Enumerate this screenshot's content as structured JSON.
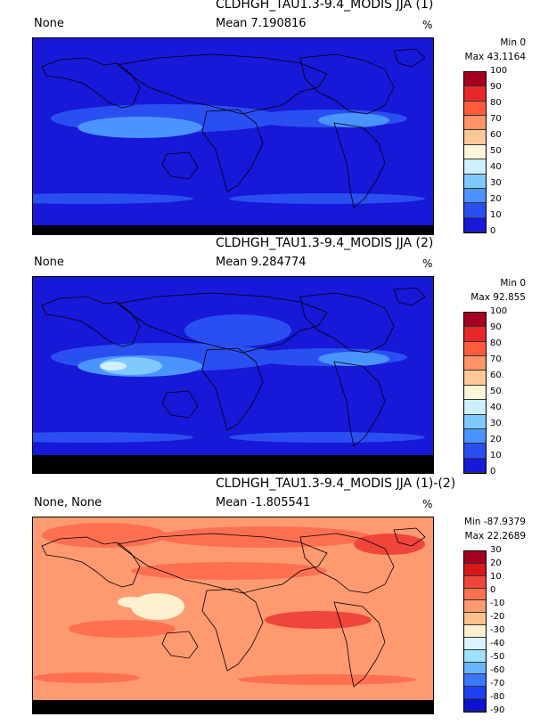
{
  "panels": [
    {
      "title": "CLDHGH_TAU1.3-9.4_MODIS JJA (1)",
      "left_label": "None",
      "mean_text": "Mean 7.190816",
      "units": "%",
      "min_text": "Min 0",
      "max_text": "Max 43.1164",
      "colorbar_ticks": [
        "100",
        "90",
        "80",
        "70",
        "60",
        "50",
        "40",
        "30",
        "20",
        "10",
        "0"
      ],
      "colorbar_colors": [
        "#a50021",
        "#e8262b",
        "#ff5a3c",
        "#ff9466",
        "#ffc896",
        "#fff5d8",
        "#cdefff",
        "#7fc9ff",
        "#4a94ff",
        "#2a4ff0",
        "#1818d8"
      ],
      "map_scheme": "low"
    },
    {
      "title": "CLDHGH_TAU1.3-9.4_MODIS JJA (2)",
      "left_label": "None",
      "mean_text": "Mean 9.284774",
      "units": "%",
      "min_text": "Min 0",
      "max_text": "Max 92.855",
      "colorbar_ticks": [
        "100",
        "90",
        "80",
        "70",
        "60",
        "50",
        "40",
        "30",
        "20",
        "10",
        "0"
      ],
      "colorbar_colors": [
        "#a50021",
        "#e8262b",
        "#ff5a3c",
        "#ff9466",
        "#ffc896",
        "#fff5d8",
        "#cdefff",
        "#7fc9ff",
        "#4a94ff",
        "#2a4ff0",
        "#1818d8"
      ],
      "map_scheme": "low2"
    },
    {
      "title": "CLDHGH_TAU1.3-9.4_MODIS JJA (1)-(2)",
      "left_label": "None, None",
      "mean_text": "Mean -1.805541",
      "units": "%",
      "min_text": "Min -87.9379",
      "max_text": "Max 22.2689",
      "colorbar_ticks": [
        "30",
        "20",
        "10",
        "0",
        "-10",
        "-20",
        "-30",
        "-40",
        "-50",
        "-60",
        "-70",
        "-80",
        "-90"
      ],
      "colorbar_colors": [
        "#a50021",
        "#d7191c",
        "#f0453b",
        "#ff7050",
        "#ff9a70",
        "#ffc08c",
        "#fff0d0",
        "#d8f4ff",
        "#9fe0ff",
        "#6ab4ff",
        "#3c78ff",
        "#2040f0",
        "#1010d0"
      ],
      "map_scheme": "diff"
    }
  ]
}
